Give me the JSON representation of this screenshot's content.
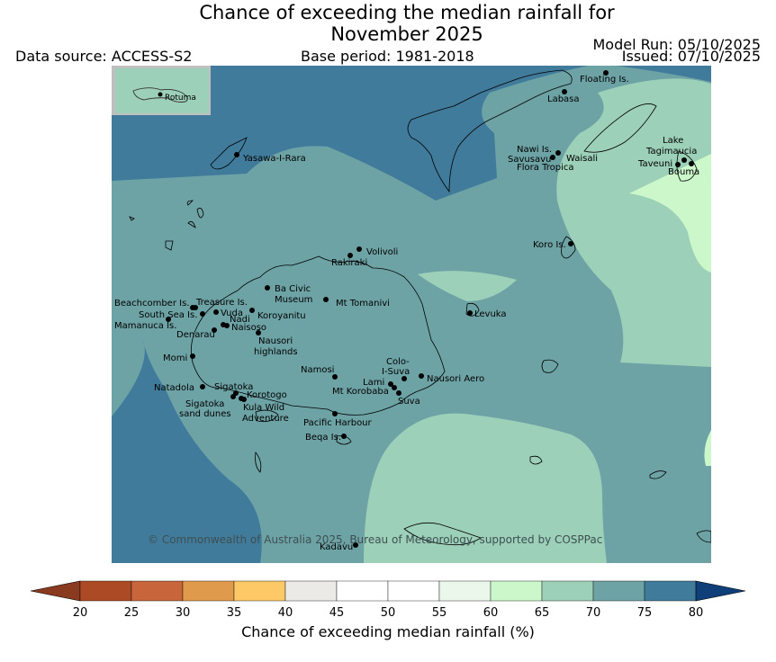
{
  "title_line1": "Chance of exceeding the median rainfall for",
  "title_line2": "November 2025",
  "data_source": "Data source: ACCESS-S2",
  "base_period": "Base period: 1981-2018",
  "model_run": "Model Run: 05/10/2025",
  "issued": "Issued: 07/10/2025",
  "copyright": "© Commonwealth of Australia 2025, Bureau of Meteorology, supported by COSPPac",
  "inset_label": "Rotuma",
  "colorbar": {
    "label": "Chance of exceeding median rainfall (%)",
    "ticks": [
      "20",
      "25",
      "30",
      "35",
      "40",
      "45",
      "50",
      "55",
      "60",
      "65",
      "70",
      "75",
      "80"
    ],
    "colors": [
      "#ad4a26",
      "#c8653a",
      "#e09a4b",
      "#fdc966",
      "#eceae6",
      "#ffffff",
      "#ffffff",
      "#ecf7ec",
      "#cbf7cb",
      "#9dd0b8",
      "#6ea3a6",
      "#417b9b"
    ],
    "low_extend_color": "#8a3a1f",
    "high_extend_color": "#0f3f78"
  },
  "map_colors": {
    "c65_70": "#9dd0b8",
    "c70_75": "#6ea3a6",
    "c75_80": "#417b9b",
    "c60_65": "#cbf7cb"
  },
  "places": {
    "floating": "Floating Is.",
    "labasa": "Labasa",
    "yasawa": "Yasawa-I-Rara",
    "nawi": "Nawi Is.",
    "savusavu": "Savusavu",
    "waisali": "Waisali",
    "flora": "Flora Tropica",
    "lake": "Lake",
    "tagimaucia": "Tagimaucia",
    "taveuni": "Taveuni",
    "bouma": "Bouma",
    "koro": "Koro Is.",
    "volivoli": "Volivoli",
    "rakiraki": "Rakiraki",
    "ba_civic": "Ba Civic",
    "museum": "Museum",
    "tomanivi": "Mt Tomanivi",
    "beachcomber": "Beachcomber Is.",
    "treasure": "Treasure Is.",
    "southsea": "South Sea Is.",
    "vuda": "Vuda",
    "koroyanitu": "Koroyanitu",
    "nadi": "Nadi",
    "mamanuca": "Mamanuca Is.",
    "naisoso": "Naisoso",
    "denarau": "Denarau",
    "levuka": "Levuka",
    "nausori_h1": "Nausori",
    "nausori_h2": "highlands",
    "momi": "Momi",
    "colo1": "Colo-",
    "colo2": "I-Suva",
    "namosi": "Namosi",
    "nausori_aero": "Nausori Aero",
    "lami": "Lami",
    "natadola": "Natadola",
    "sigatoka": "Sigatoka",
    "korobaba": "Mt Korobaba",
    "korotogo": "Korotogo",
    "suva": "Suva",
    "sig_dunes1": "Sigatoka",
    "sig_dunes2": "sand dunes",
    "kula1": "Kula Wild",
    "kula2": "Adventure",
    "pacific_harbour": "Pacific Harbour",
    "beqa": "Beqa Is.",
    "kadavu": "Kadavu"
  }
}
